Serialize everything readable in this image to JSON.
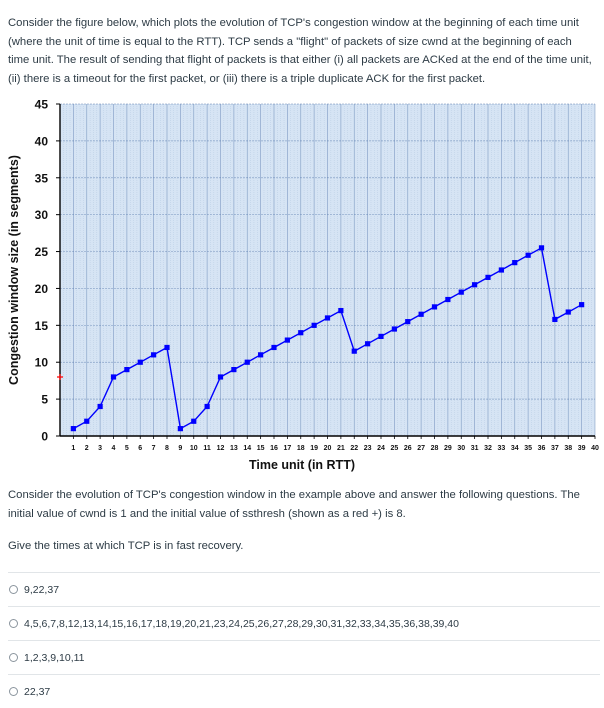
{
  "intro_text": "Consider the figure below, which plots the evolution of TCP's congestion window at the beginning of each time unit (where the unit of time is equal to the RTT). TCP sends a \"flight\" of packets of size cwnd at the beginning of each time unit. The result of sending that flight of packets is that either (i) all packets are ACKed at the end of the time unit, (ii) there is a timeout for the first packet, or (iii) there is a triple duplicate ACK for the first packet.",
  "chart_data": {
    "type": "line",
    "title": "",
    "xlabel": "Time unit (in RTT)",
    "ylabel": "Congestion window size (in segments)",
    "xlim": [
      0,
      40
    ],
    "ylim": [
      0,
      45
    ],
    "xticks": [
      1,
      2,
      3,
      4,
      5,
      6,
      7,
      8,
      9,
      10,
      11,
      12,
      13,
      14,
      15,
      16,
      17,
      18,
      19,
      20,
      21,
      22,
      23,
      24,
      25,
      26,
      27,
      28,
      29,
      30,
      31,
      32,
      33,
      34,
      35,
      36,
      37,
      38,
      39,
      40
    ],
    "yticks": [
      0,
      5,
      10,
      15,
      20,
      25,
      30,
      35,
      40,
      45
    ],
    "grid": true,
    "series": [
      {
        "color": "#0000ff",
        "x": [
          1,
          2,
          3,
          4,
          5,
          6,
          7,
          8,
          9,
          10,
          11,
          12,
          13,
          14,
          15,
          16,
          17,
          18,
          19,
          20,
          21,
          22,
          23,
          24,
          25,
          26,
          27,
          28,
          29,
          30,
          31,
          32,
          33,
          34,
          35,
          36,
          37,
          38,
          39
        ],
        "y": [
          1,
          2,
          4,
          8,
          9,
          10,
          11,
          12,
          1,
          2,
          4,
          8,
          9,
          10,
          11,
          12,
          13,
          14,
          15,
          16,
          17,
          11.5,
          12.5,
          13.5,
          14.5,
          15.5,
          16.5,
          17.5,
          18.5,
          19.5,
          20.5,
          21.5,
          22.5,
          23.5,
          24.5,
          25.5,
          15.8,
          16.8,
          17.8
        ]
      }
    ],
    "ssthresh_marker": {
      "x": 0,
      "y": 8,
      "color": "#ff0000"
    },
    "plot_background": "#d6e4f4",
    "grid_color": "#4a6fa5"
  },
  "after_text": "Consider the evolution of TCP's congestion window in the example above and answer the following questions. The initial value of cwnd is 1 and the initial value of ssthresh (shown as a red +) is 8.",
  "question_text": "Give the times at which TCP is in fast recovery.",
  "options": [
    "9,22,37",
    "4,5,6,7,8,12,13,14,15,16,17,18,19,20,21,23,24,25,26,27,28,29,30,31,32,33,34,35,36,38,39,40",
    "1,2,3,9,10,11",
    "22,37"
  ]
}
